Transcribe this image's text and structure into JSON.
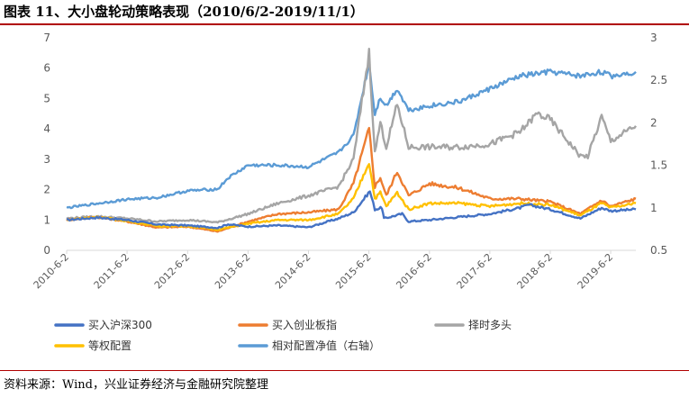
{
  "figure": {
    "title": "图表 11、大小盘轮动策略表现（2010/6/2-2019/11/1）",
    "source": "资料来源：Wind，兴业证券经济与金融研究院整理"
  },
  "colors": {
    "title_rule": "#b00000",
    "series": [
      "#4472c4",
      "#ed7d31",
      "#a5a5a5",
      "#ffc000",
      "#5b9bd5"
    ]
  },
  "chart_data": {
    "type": "line",
    "title": "",
    "xlabel": "",
    "ylabel": "",
    "x_ticks": [
      "2010-6-2",
      "2011-6-2",
      "2012-6-2",
      "2013-6-2",
      "2014-6-2",
      "2015-6-2",
      "2016-6-2",
      "2017-6-2",
      "2018-6-2",
      "2019-6-2"
    ],
    "x_range": [
      "2010-06-02",
      "2019-11-01"
    ],
    "y_left": {
      "min": 0,
      "max": 7,
      "ticks": [
        "0",
        "1",
        "2",
        "3",
        "4",
        "5",
        "6",
        "7"
      ]
    },
    "y_right": {
      "min": 0.5,
      "max": 3,
      "ticks": [
        "0.5",
        "1",
        "1.5",
        "2",
        "2.5",
        "3"
      ]
    },
    "grid": false,
    "legend_position": "bottom",
    "series": [
      {
        "name": "买入沪深300",
        "axis": "left",
        "color": "#4472c4",
        "points": [
          [
            "2010-06-02",
            1.0
          ],
          [
            "2010-12-01",
            1.08
          ],
          [
            "2011-06-02",
            1.0
          ],
          [
            "2011-12-01",
            0.85
          ],
          [
            "2012-06-02",
            0.82
          ],
          [
            "2012-12-01",
            0.74
          ],
          [
            "2013-02-01",
            0.86
          ],
          [
            "2013-06-02",
            0.78
          ],
          [
            "2013-12-01",
            0.82
          ],
          [
            "2014-06-02",
            0.76
          ],
          [
            "2014-12-01",
            1.05
          ],
          [
            "2015-03-01",
            1.25
          ],
          [
            "2015-06-08",
            1.95
          ],
          [
            "2015-07-08",
            1.35
          ],
          [
            "2015-08-20",
            1.4
          ],
          [
            "2015-09-01",
            1.05
          ],
          [
            "2015-12-20",
            1.2
          ],
          [
            "2016-01-28",
            0.95
          ],
          [
            "2016-06-02",
            1.0
          ],
          [
            "2016-12-01",
            1.1
          ],
          [
            "2017-06-02",
            1.2
          ],
          [
            "2017-12-01",
            1.4
          ],
          [
            "2018-01-24",
            1.5
          ],
          [
            "2018-06-02",
            1.35
          ],
          [
            "2018-12-01",
            1.05
          ],
          [
            "2019-04-08",
            1.4
          ],
          [
            "2019-06-02",
            1.3
          ],
          [
            "2019-11-01",
            1.35
          ]
        ]
      },
      {
        "name": "买入创业板指",
        "axis": "left",
        "color": "#ed7d31",
        "points": [
          [
            "2010-06-02",
            1.0
          ],
          [
            "2010-12-01",
            1.1
          ],
          [
            "2011-06-02",
            0.95
          ],
          [
            "2011-12-01",
            0.75
          ],
          [
            "2012-06-02",
            0.78
          ],
          [
            "2012-12-01",
            0.62
          ],
          [
            "2013-06-02",
            0.95
          ],
          [
            "2013-12-01",
            1.2
          ],
          [
            "2014-06-02",
            1.25
          ],
          [
            "2014-12-01",
            1.35
          ],
          [
            "2015-03-01",
            2.2
          ],
          [
            "2015-06-03",
            4.0
          ],
          [
            "2015-07-08",
            2.1
          ],
          [
            "2015-08-10",
            2.4
          ],
          [
            "2015-09-15",
            1.8
          ],
          [
            "2015-11-20",
            2.6
          ],
          [
            "2016-01-28",
            1.8
          ],
          [
            "2016-06-02",
            2.2
          ],
          [
            "2016-12-01",
            2.05
          ],
          [
            "2017-06-02",
            1.7
          ],
          [
            "2017-12-01",
            1.7
          ],
          [
            "2018-06-02",
            1.6
          ],
          [
            "2018-12-01",
            1.2
          ],
          [
            "2019-04-08",
            1.65
          ],
          [
            "2019-06-02",
            1.45
          ],
          [
            "2019-11-01",
            1.7
          ]
        ]
      },
      {
        "name": "择时多头",
        "axis": "left",
        "color": "#a5a5a5",
        "points": [
          [
            "2010-06-02",
            1.05
          ],
          [
            "2010-12-01",
            1.12
          ],
          [
            "2011-06-02",
            1.05
          ],
          [
            "2011-12-01",
            0.95
          ],
          [
            "2012-06-02",
            1.0
          ],
          [
            "2012-12-01",
            0.92
          ],
          [
            "2013-06-02",
            1.2
          ],
          [
            "2013-12-01",
            1.55
          ],
          [
            "2014-06-02",
            1.8
          ],
          [
            "2014-12-01",
            2.1
          ],
          [
            "2015-03-01",
            3.0
          ],
          [
            "2015-06-03",
            6.5
          ],
          [
            "2015-07-08",
            3.2
          ],
          [
            "2015-08-10",
            4.2
          ],
          [
            "2015-09-15",
            3.4
          ],
          [
            "2015-11-20",
            4.8
          ],
          [
            "2016-01-28",
            3.4
          ],
          [
            "2016-06-02",
            3.4
          ],
          [
            "2016-12-01",
            3.4
          ],
          [
            "2017-06-02",
            3.5
          ],
          [
            "2017-12-01",
            3.9
          ],
          [
            "2018-03-15",
            4.5
          ],
          [
            "2018-06-02",
            4.3
          ],
          [
            "2018-12-01",
            3.1
          ],
          [
            "2019-01-15",
            3.1
          ],
          [
            "2019-04-08",
            4.4
          ],
          [
            "2019-06-02",
            3.6
          ],
          [
            "2019-11-01",
            4.1
          ]
        ]
      },
      {
        "name": "等权配置",
        "axis": "left",
        "color": "#ffc000",
        "points": [
          [
            "2010-06-02",
            1.0
          ],
          [
            "2010-12-01",
            1.1
          ],
          [
            "2011-06-02",
            0.97
          ],
          [
            "2011-12-01",
            0.8
          ],
          [
            "2012-06-02",
            0.8
          ],
          [
            "2012-12-01",
            0.68
          ],
          [
            "2013-06-02",
            0.88
          ],
          [
            "2013-12-01",
            1.0
          ],
          [
            "2014-06-02",
            1.0
          ],
          [
            "2014-12-01",
            1.2
          ],
          [
            "2015-03-01",
            1.7
          ],
          [
            "2015-06-03",
            2.9
          ],
          [
            "2015-07-08",
            1.7
          ],
          [
            "2015-08-10",
            1.9
          ],
          [
            "2015-09-15",
            1.45
          ],
          [
            "2015-11-20",
            1.9
          ],
          [
            "2016-01-28",
            1.35
          ],
          [
            "2016-06-02",
            1.55
          ],
          [
            "2016-12-01",
            1.55
          ],
          [
            "2017-06-02",
            1.45
          ],
          [
            "2017-12-01",
            1.55
          ],
          [
            "2018-06-02",
            1.5
          ],
          [
            "2018-12-01",
            1.15
          ],
          [
            "2019-04-08",
            1.55
          ],
          [
            "2019-06-02",
            1.4
          ],
          [
            "2019-11-01",
            1.55
          ]
        ]
      },
      {
        "name": "相对配置净值（右轴）",
        "axis": "right",
        "color": "#5b9bd5",
        "points": [
          [
            "2010-06-02",
            1.0
          ],
          [
            "2010-12-01",
            1.05
          ],
          [
            "2011-06-02",
            1.1
          ],
          [
            "2011-12-01",
            1.12
          ],
          [
            "2012-06-02",
            1.2
          ],
          [
            "2012-12-01",
            1.22
          ],
          [
            "2013-02-01",
            1.35
          ],
          [
            "2013-06-02",
            1.5
          ],
          [
            "2013-12-01",
            1.5
          ],
          [
            "2014-06-02",
            1.48
          ],
          [
            "2014-12-01",
            1.65
          ],
          [
            "2015-03-01",
            1.85
          ],
          [
            "2015-06-03",
            2.7
          ],
          [
            "2015-07-08",
            2.1
          ],
          [
            "2015-08-10",
            2.3
          ],
          [
            "2015-09-15",
            2.2
          ],
          [
            "2015-11-20",
            2.4
          ],
          [
            "2016-01-28",
            2.15
          ],
          [
            "2016-06-02",
            2.2
          ],
          [
            "2016-12-01",
            2.25
          ],
          [
            "2017-06-02",
            2.4
          ],
          [
            "2017-12-01",
            2.55
          ],
          [
            "2018-06-02",
            2.6
          ],
          [
            "2018-12-01",
            2.55
          ],
          [
            "2019-04-08",
            2.6
          ],
          [
            "2019-06-02",
            2.55
          ],
          [
            "2019-11-01",
            2.6
          ]
        ]
      }
    ]
  }
}
